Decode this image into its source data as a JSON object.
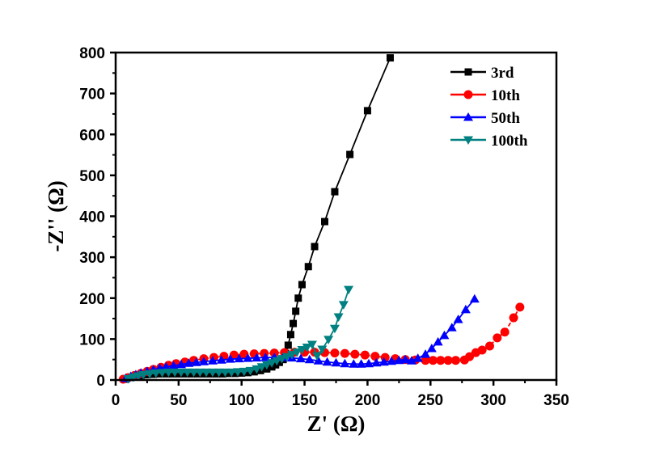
{
  "chart_data": {
    "type": "scatter",
    "title": "",
    "xlabel": "Z' (Ω)",
    "ylabel": "-Z'' (Ω)",
    "xlim": [
      0,
      350
    ],
    "ylim": [
      0,
      800
    ],
    "xticks": [
      "0",
      "50",
      "100",
      "150",
      "200",
      "250",
      "300",
      "350"
    ],
    "yticks": [
      "0",
      "100",
      "200",
      "300",
      "400",
      "500",
      "600",
      "700",
      "800"
    ],
    "grid": false,
    "legend_position": "top-right",
    "series": [
      {
        "name": "3rd",
        "color": "#000000",
        "marker": "square",
        "x": [
          8,
          12,
          16,
          20,
          25,
          30,
          35,
          40,
          45,
          50,
          55,
          60,
          65,
          70,
          75,
          80,
          85,
          90,
          95,
          100,
          105,
          110,
          115,
          120,
          124,
          127,
          130,
          133,
          135,
          137,
          139,
          141,
          143,
          145,
          148,
          153,
          158,
          166,
          174,
          186,
          200,
          218
        ],
        "y": [
          2,
          6,
          9,
          11,
          13,
          14,
          15,
          15,
          15,
          15,
          15,
          15,
          15,
          15,
          15,
          15,
          15,
          16,
          16,
          17,
          18,
          20,
          23,
          27,
          32,
          37,
          43,
          50,
          65,
          85,
          111,
          138,
          168,
          200,
          233,
          277,
          326,
          387,
          460,
          551,
          658,
          787
        ]
      },
      {
        "name": "10th",
        "color": "#ff0000",
        "marker": "circle",
        "x": [
          6,
          10,
          15,
          20,
          25,
          30,
          36,
          42,
          48,
          55,
          62,
          70,
          78,
          86,
          94,
          102,
          110,
          118,
          126,
          134,
          142,
          150,
          158,
          166,
          174,
          182,
          190,
          198,
          206,
          214,
          222,
          230,
          238,
          246,
          252,
          258,
          264,
          270,
          277,
          281,
          286,
          291,
          297,
          303,
          309,
          316,
          321
        ],
        "y": [
          2,
          6,
          11,
          16,
          21,
          26,
          31,
          36,
          40,
          44,
          48,
          52,
          55,
          58,
          61,
          63,
          64,
          65,
          66,
          67,
          68,
          68,
          68,
          67,
          66,
          65,
          63,
          61,
          58,
          55,
          52,
          50,
          49,
          48,
          48,
          48,
          48,
          48,
          49,
          57,
          67,
          73,
          83,
          103,
          117,
          152,
          178
        ],
        "line_style": "dashed"
      },
      {
        "name": "50th",
        "color": "#0000ff",
        "marker": "triangle-up",
        "x": [
          8,
          12,
          16,
          20,
          25,
          30,
          35,
          40,
          46,
          52,
          58,
          64,
          70,
          77,
          84,
          91,
          98,
          105,
          112,
          119,
          126,
          133,
          140,
          147,
          154,
          161,
          168,
          175,
          182,
          189,
          195,
          201,
          207,
          213,
          219,
          225,
          230,
          235,
          240,
          246,
          251,
          256,
          261,
          267,
          272,
          278,
          285
        ],
        "y": [
          4,
          9,
          13,
          17,
          21,
          25,
          29,
          32,
          35,
          38,
          41,
          43,
          45,
          47,
          49,
          51,
          52,
          53,
          54,
          55,
          55,
          55,
          54,
          52,
          50,
          47,
          44,
          42,
          40,
          39,
          39,
          40,
          42,
          44,
          46,
          48,
          50,
          47,
          53,
          63,
          77,
          93,
          109,
          128,
          148,
          172,
          198
        ]
      },
      {
        "name": "100th",
        "color": "#008080",
        "marker": "triangle-down",
        "x": [
          10,
          14,
          18,
          22,
          27,
          32,
          37,
          42,
          47,
          52,
          57,
          62,
          67,
          72,
          77,
          82,
          87,
          92,
          97,
          102,
          107,
          112,
          116,
          120,
          124,
          128,
          132,
          136,
          140,
          144,
          148,
          152,
          156,
          160,
          164,
          169,
          174,
          177,
          181,
          185
        ],
        "y": [
          3,
          7,
          10,
          13,
          15,
          17,
          18,
          19,
          19,
          19,
          19,
          19,
          19,
          19,
          19,
          19,
          19,
          19,
          20,
          21,
          23,
          27,
          32,
          37,
          42,
          47,
          52,
          57,
          62,
          68,
          74,
          80,
          87,
          59,
          75,
          99,
          126,
          154,
          184,
          221
        ]
      }
    ]
  }
}
